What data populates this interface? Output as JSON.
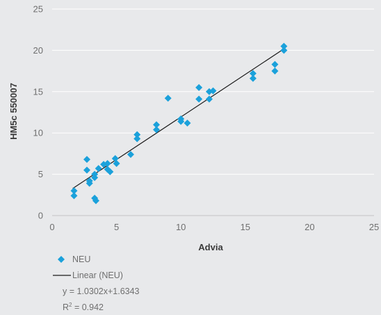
{
  "chart_data": {
    "type": "scatter",
    "xlabel": "Advia",
    "ylabel": "HM5c 550007",
    "xlim": [
      0,
      25
    ],
    "ylim": [
      0,
      25
    ],
    "x_ticks": [
      "0",
      "5",
      "10",
      "15",
      "20",
      "25"
    ],
    "y_ticks": [
      "0",
      "5",
      "10",
      "15",
      "20",
      "25"
    ],
    "grid": "horizontal",
    "legend_position": "bottom-left",
    "series": [
      {
        "name": "NEU",
        "color": "#1ba1db",
        "marker": "diamond",
        "points": [
          [
            1.7,
            3.0
          ],
          [
            1.7,
            2.4
          ],
          [
            2.7,
            6.8
          ],
          [
            2.7,
            5.5
          ],
          [
            2.9,
            4.2
          ],
          [
            2.9,
            3.9
          ],
          [
            3.3,
            5.0
          ],
          [
            3.3,
            4.6
          ],
          [
            3.3,
            2.1
          ],
          [
            3.4,
            1.8
          ],
          [
            3.6,
            5.7
          ],
          [
            4.0,
            6.2
          ],
          [
            4.3,
            6.3
          ],
          [
            4.3,
            5.6
          ],
          [
            4.5,
            5.3
          ],
          [
            4.9,
            6.9
          ],
          [
            5.0,
            6.3
          ],
          [
            6.1,
            7.4
          ],
          [
            6.6,
            9.8
          ],
          [
            6.6,
            9.3
          ],
          [
            8.1,
            11.0
          ],
          [
            8.1,
            10.4
          ],
          [
            9.0,
            14.2
          ],
          [
            10.0,
            11.7
          ],
          [
            10.0,
            11.4
          ],
          [
            10.5,
            11.2
          ],
          [
            11.4,
            15.5
          ],
          [
            11.4,
            14.1
          ],
          [
            12.2,
            15.0
          ],
          [
            12.2,
            14.1
          ],
          [
            12.5,
            15.1
          ],
          [
            15.6,
            17.2
          ],
          [
            15.6,
            16.6
          ],
          [
            17.3,
            18.3
          ],
          [
            17.3,
            17.5
          ],
          [
            18.0,
            20.5
          ],
          [
            18.0,
            20.0
          ]
        ]
      }
    ],
    "trendline": {
      "name": "Linear (NEU)",
      "type": "linear",
      "slope": 1.0302,
      "intercept": 1.6343,
      "x_range": [
        1.6,
        18.0
      ],
      "color": "#1a1a1a"
    },
    "legend": {
      "series_label": "NEU",
      "trend_label": "Linear (NEU)",
      "equation": "y = 1.0302x+1.6343",
      "r2_label": "R",
      "r2_exponent": "2",
      "r2_value": " = 0.942"
    }
  }
}
